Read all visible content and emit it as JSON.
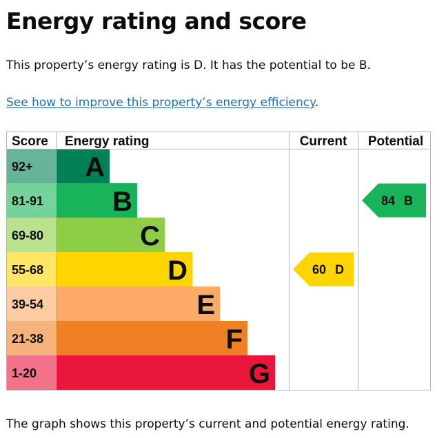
{
  "heading": "Energy rating and score",
  "summary": "This property’s energy rating is D. It has the potential to be B.",
  "improve_link": "See how to improve this property’s energy efficiency",
  "improve_link_suffix": ".",
  "table": {
    "headers": {
      "score": "Score",
      "rating": "Energy rating",
      "current": "Current",
      "potential": "Potential"
    },
    "bands": [
      {
        "letter": "A",
        "range": "92+",
        "color": "#008054",
        "score_bg": "#66b398"
      },
      {
        "letter": "B",
        "range": "81-91",
        "color": "#19b459",
        "score_bg": "#75d29b"
      },
      {
        "letter": "C",
        "range": "69-80",
        "color": "#8dce46",
        "score_bg": "#bbe290"
      },
      {
        "letter": "D",
        "range": "55-68",
        "color": "#ffd500",
        "score_bg": "#ffe666"
      },
      {
        "letter": "E",
        "range": "39-54",
        "color": "#fcaa65",
        "score_bg": "#fdcca3"
      },
      {
        "letter": "F",
        "range": "21-38",
        "color": "#ef8023",
        "score_bg": "#f5b37b"
      },
      {
        "letter": "G",
        "range": "1-20",
        "color": "#e9153b",
        "score_bg": "#f27389"
      }
    ],
    "current": {
      "score": "60",
      "letter": "D",
      "color": "#ffd500",
      "text_color": "#0b0c0c"
    },
    "potential": {
      "score": "84",
      "letter": "B",
      "color": "#19b459",
      "text_color": "#0b0c0c"
    }
  },
  "footer": "The graph shows this property’s current and potential energy rating."
}
